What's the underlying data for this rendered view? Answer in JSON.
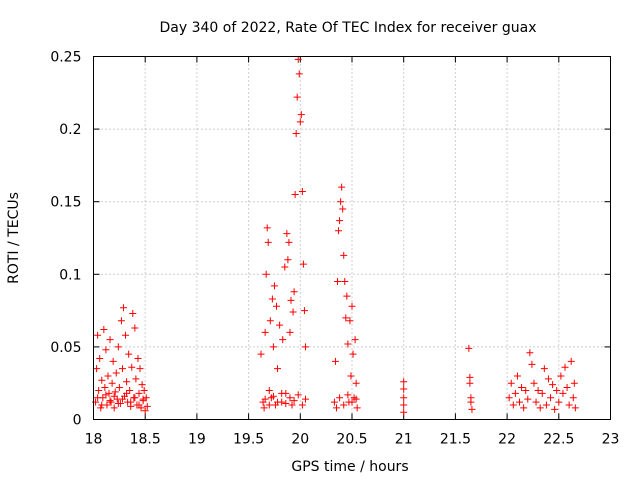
{
  "chart_data": {
    "type": "scatter",
    "title": "Day 340 of 2022, Rate Of TEC Index for receiver guax",
    "xlabel": "GPS time / hours",
    "ylabel": "ROTI / TECUs",
    "xlim": [
      18,
      23
    ],
    "ylim": [
      0,
      0.25
    ],
    "x_ticks": [
      "18",
      "18.5",
      "19",
      "19.5",
      "20",
      "20.5",
      "21",
      "21.5",
      "22",
      "22.5",
      "23"
    ],
    "y_ticks": [
      "0",
      "0.05",
      "0.1",
      "0.15",
      "0.2",
      "0.25"
    ],
    "grid": true,
    "marker": "+",
    "color": "#ff0000",
    "series": [
      {
        "points": [
          [
            18.02,
            0.012
          ],
          [
            18.03,
            0.035
          ],
          [
            18.04,
            0.058
          ],
          [
            18.05,
            0.02
          ],
          [
            18.06,
            0.042
          ],
          [
            18.07,
            0.008
          ],
          [
            18.08,
            0.027
          ],
          [
            18.09,
            0.015
          ],
          [
            18.1,
            0.062
          ],
          [
            18.11,
            0.022
          ],
          [
            18.12,
            0.048
          ],
          [
            18.13,
            0.01
          ],
          [
            18.14,
            0.03
          ],
          [
            18.15,
            0.018
          ],
          [
            18.16,
            0.055
          ],
          [
            18.17,
            0.012
          ],
          [
            18.18,
            0.025
          ],
          [
            18.19,
            0.04
          ],
          [
            18.2,
            0.008
          ],
          [
            18.21,
            0.019
          ],
          [
            18.22,
            0.032
          ],
          [
            18.23,
            0.014
          ],
          [
            18.24,
            0.05
          ],
          [
            18.25,
            0.022
          ],
          [
            18.26,
            0.011
          ],
          [
            18.27,
            0.068
          ],
          [
            18.28,
            0.035
          ],
          [
            18.29,
            0.077
          ],
          [
            18.3,
            0.016
          ],
          [
            18.31,
            0.058
          ],
          [
            18.32,
            0.026
          ],
          [
            18.33,
            0.012
          ],
          [
            18.34,
            0.045
          ],
          [
            18.35,
            0.02
          ],
          [
            18.36,
            0.009
          ],
          [
            18.37,
            0.036
          ],
          [
            18.38,
            0.073
          ],
          [
            18.39,
            0.015
          ],
          [
            18.4,
            0.063
          ],
          [
            18.41,
            0.028
          ],
          [
            18.42,
            0.01
          ],
          [
            18.43,
            0.042
          ],
          [
            18.44,
            0.018
          ],
          [
            18.45,
            0.035
          ],
          [
            18.46,
            0.008
          ],
          [
            18.47,
            0.024
          ],
          [
            18.48,
            0.013
          ],
          [
            18.49,
            0.02
          ],
          [
            18.5,
            0.006
          ],
          [
            18.51,
            0.015
          ],
          [
            18.52,
            0.009
          ],
          [
            18.04,
            0.015
          ],
          [
            18.08,
            0.01
          ],
          [
            18.12,
            0.017
          ],
          [
            18.16,
            0.013
          ],
          [
            18.2,
            0.016
          ],
          [
            18.24,
            0.011
          ],
          [
            18.28,
            0.014
          ],
          [
            18.32,
            0.018
          ],
          [
            18.36,
            0.012
          ],
          [
            18.4,
            0.015
          ],
          [
            18.44,
            0.01
          ],
          [
            18.48,
            0.014
          ],
          [
            19.62,
            0.045
          ],
          [
            19.64,
            0.012
          ],
          [
            19.65,
            0.008
          ],
          [
            19.66,
            0.06
          ],
          [
            19.67,
            0.1
          ],
          [
            19.68,
            0.132
          ],
          [
            19.69,
            0.122
          ],
          [
            19.7,
            0.02
          ],
          [
            19.71,
            0.068
          ],
          [
            19.72,
            0.015
          ],
          [
            19.73,
            0.083
          ],
          [
            19.74,
            0.05
          ],
          [
            19.75,
            0.092
          ],
          [
            19.76,
            0.01
          ],
          [
            19.77,
            0.078
          ],
          [
            19.78,
            0.035
          ],
          [
            19.8,
            0.065
          ],
          [
            19.82,
            0.012
          ],
          [
            19.83,
            0.055
          ],
          [
            19.85,
            0.105
          ],
          [
            19.86,
            0.018
          ],
          [
            19.87,
            0.128
          ],
          [
            19.88,
            0.11
          ],
          [
            19.89,
            0.122
          ],
          [
            19.9,
            0.06
          ],
          [
            19.91,
            0.082
          ],
          [
            19.92,
            0.01
          ],
          [
            19.93,
            0.074
          ],
          [
            19.94,
            0.088
          ],
          [
            19.95,
            0.155
          ],
          [
            19.96,
            0.197
          ],
          [
            19.97,
            0.222
          ],
          [
            19.98,
            0.248
          ],
          [
            19.99,
            0.238
          ],
          [
            20.0,
            0.205
          ],
          [
            20.01,
            0.21
          ],
          [
            20.02,
            0.157
          ],
          [
            20.03,
            0.107
          ],
          [
            20.04,
            0.075
          ],
          [
            20.05,
            0.05
          ],
          [
            19.66,
            0.014
          ],
          [
            19.7,
            0.01
          ],
          [
            19.74,
            0.016
          ],
          [
            19.78,
            0.012
          ],
          [
            19.82,
            0.018
          ],
          [
            19.86,
            0.011
          ],
          [
            19.9,
            0.015
          ],
          [
            19.94,
            0.013
          ],
          [
            19.98,
            0.017
          ],
          [
            20.02,
            0.01
          ],
          [
            20.05,
            0.014
          ],
          [
            20.33,
            0.012
          ],
          [
            20.34,
            0.04
          ],
          [
            20.35,
            0.008
          ],
          [
            20.36,
            0.095
          ],
          [
            20.37,
            0.13
          ],
          [
            20.38,
            0.137
          ],
          [
            20.39,
            0.15
          ],
          [
            20.4,
            0.16
          ],
          [
            20.41,
            0.145
          ],
          [
            20.42,
            0.113
          ],
          [
            20.43,
            0.095
          ],
          [
            20.44,
            0.07
          ],
          [
            20.45,
            0.085
          ],
          [
            20.46,
            0.052
          ],
          [
            20.47,
            0.012
          ],
          [
            20.48,
            0.068
          ],
          [
            20.49,
            0.03
          ],
          [
            20.5,
            0.078
          ],
          [
            20.51,
            0.045
          ],
          [
            20.52,
            0.015
          ],
          [
            20.53,
            0.055
          ],
          [
            20.54,
            0.025
          ],
          [
            20.55,
            0.008
          ],
          [
            20.38,
            0.015
          ],
          [
            20.42,
            0.01
          ],
          [
            20.46,
            0.017
          ],
          [
            20.5,
            0.012
          ],
          [
            20.54,
            0.014
          ],
          [
            21.0,
            0.026
          ],
          [
            21.0,
            0.021
          ],
          [
            21.0,
            0.015
          ],
          [
            21.0,
            0.01
          ],
          [
            21.0,
            0.005
          ],
          [
            21.63,
            0.049
          ],
          [
            21.64,
            0.029
          ],
          [
            21.64,
            0.025
          ],
          [
            21.65,
            0.015
          ],
          [
            21.65,
            0.012
          ],
          [
            21.66,
            0.007
          ],
          [
            22.02,
            0.015
          ],
          [
            22.04,
            0.025
          ],
          [
            22.06,
            0.01
          ],
          [
            22.08,
            0.018
          ],
          [
            22.1,
            0.03
          ],
          [
            22.12,
            0.012
          ],
          [
            22.14,
            0.022
          ],
          [
            22.16,
            0.008
          ],
          [
            22.18,
            0.02
          ],
          [
            22.2,
            0.014
          ],
          [
            22.22,
            0.046
          ],
          [
            22.24,
            0.038
          ],
          [
            22.26,
            0.025
          ],
          [
            22.28,
            0.012
          ],
          [
            22.3,
            0.02
          ],
          [
            22.32,
            0.008
          ],
          [
            22.34,
            0.018
          ],
          [
            22.36,
            0.035
          ],
          [
            22.38,
            0.01
          ],
          [
            22.4,
            0.028
          ],
          [
            22.42,
            0.015
          ],
          [
            22.44,
            0.024
          ],
          [
            22.46,
            0.007
          ],
          [
            22.48,
            0.02
          ],
          [
            22.5,
            0.012
          ],
          [
            22.52,
            0.03
          ],
          [
            22.54,
            0.018
          ],
          [
            22.56,
            0.036
          ],
          [
            22.58,
            0.022
          ],
          [
            22.6,
            0.01
          ],
          [
            22.62,
            0.04
          ],
          [
            22.64,
            0.015
          ],
          [
            22.65,
            0.025
          ],
          [
            22.66,
            0.008
          ]
        ]
      }
    ]
  }
}
